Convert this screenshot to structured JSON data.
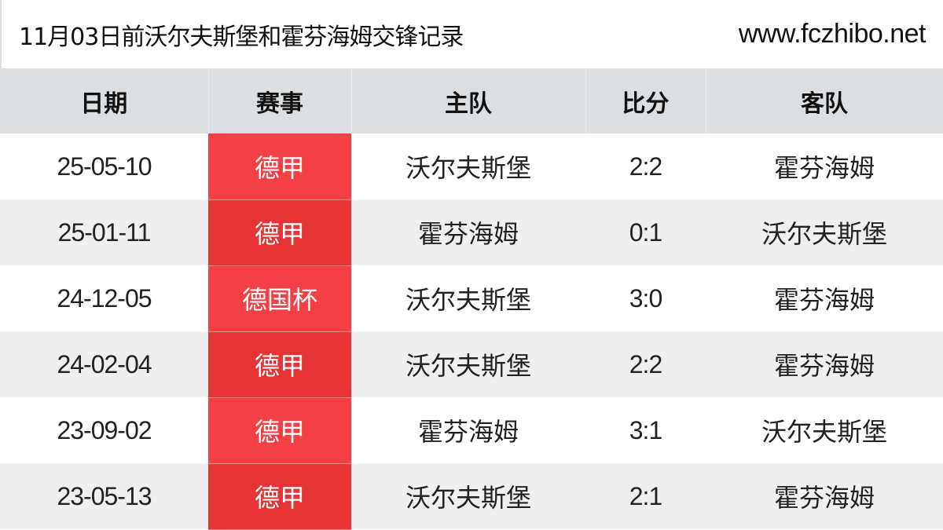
{
  "header": {
    "title": "11月03日前沃尔夫斯堡和霍芬海姆交锋记录",
    "site": "www.fczhibo.net"
  },
  "columns": [
    "日期",
    "赛事",
    "主队",
    "比分",
    "客队"
  ],
  "rows": [
    {
      "date": "25-05-10",
      "comp": "德甲",
      "home": "沃尔夫斯堡",
      "score": "2:2",
      "away": "霍芬海姆"
    },
    {
      "date": "25-01-11",
      "comp": "德甲",
      "home": "霍芬海姆",
      "score": "0:1",
      "away": "沃尔夫斯堡"
    },
    {
      "date": "24-12-05",
      "comp": "德国杯",
      "home": "沃尔夫斯堡",
      "score": "3:0",
      "away": "霍芬海姆"
    },
    {
      "date": "24-02-04",
      "comp": "德甲",
      "home": "沃尔夫斯堡",
      "score": "2:2",
      "away": "霍芬海姆"
    },
    {
      "date": "23-09-02",
      "comp": "德甲",
      "home": "霍芬海姆",
      "score": "3:1",
      "away": "沃尔夫斯堡"
    },
    {
      "date": "23-05-13",
      "comp": "德甲",
      "home": "沃尔夫斯堡",
      "score": "2:1",
      "away": "霍芬海姆"
    }
  ],
  "colors": {
    "header_bg": "#dcdfe2",
    "comp_red": "#f43f44",
    "comp_red_alt": "#e63333",
    "row_alt": "#efefef"
  }
}
